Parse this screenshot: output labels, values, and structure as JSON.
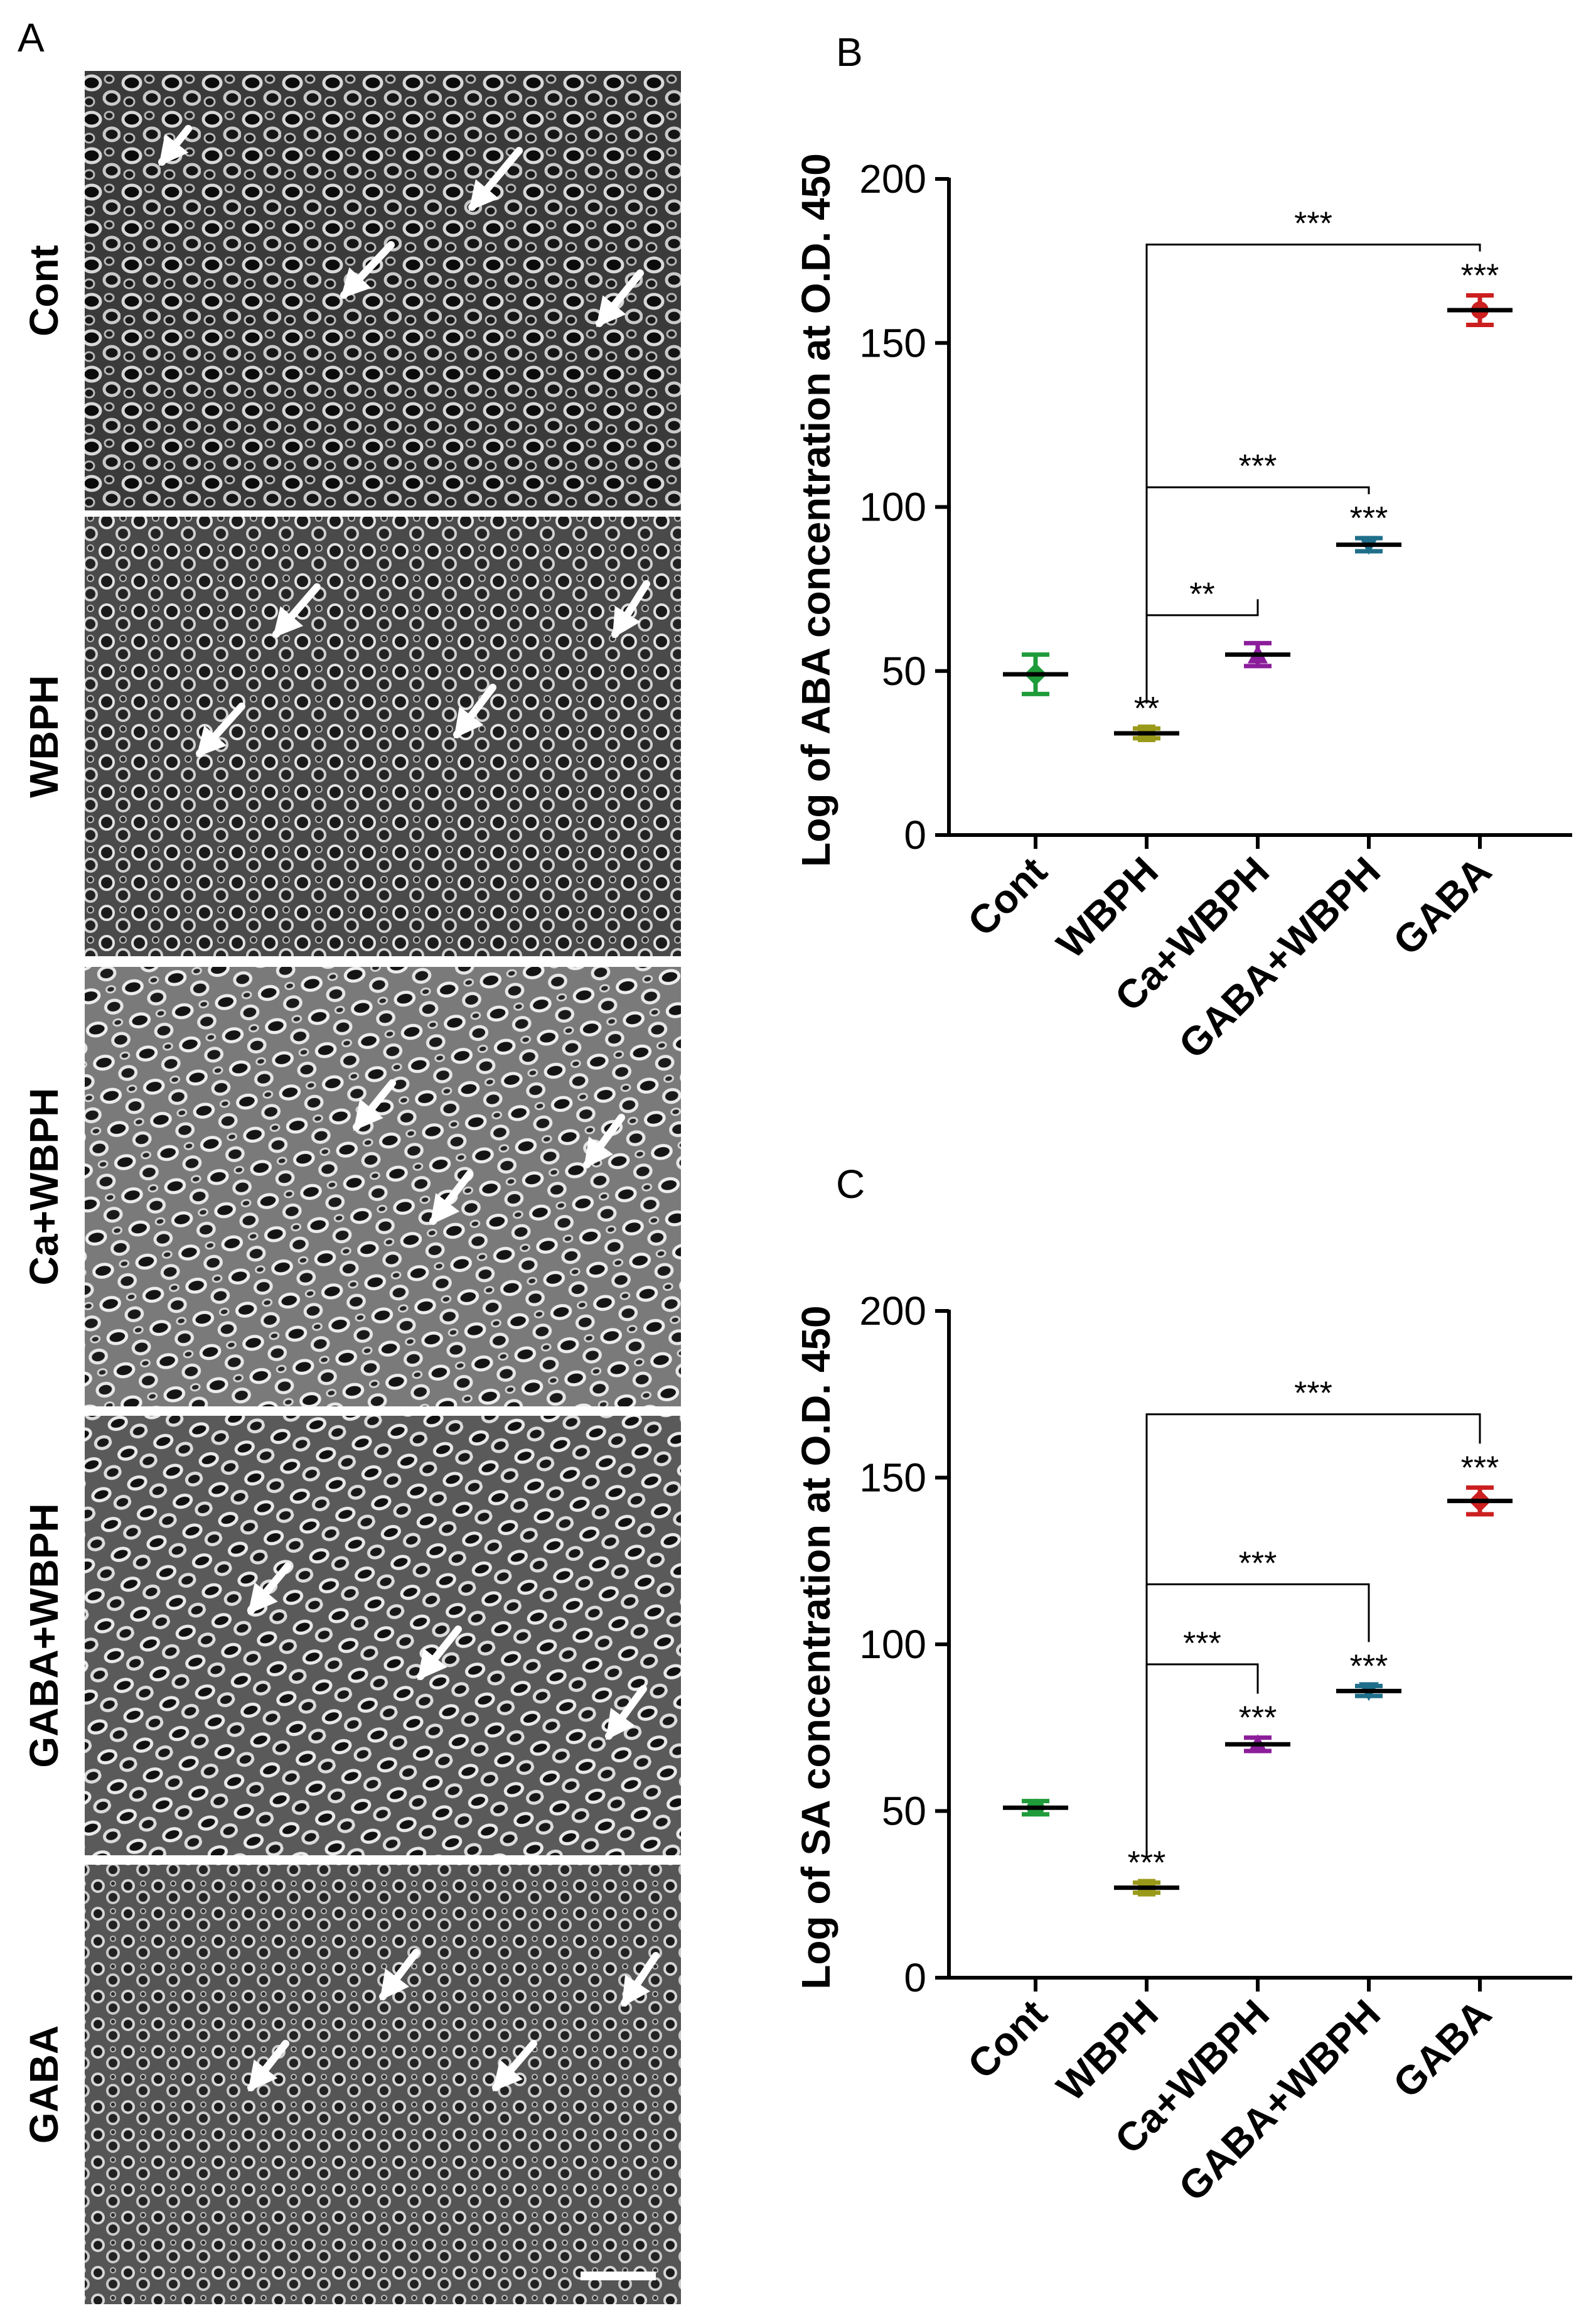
{
  "panel_a": {
    "letter": "A",
    "rows": [
      {
        "label": "Cont",
        "arrows": [
          [
            300,
            205,
            258,
            258
          ],
          [
            827,
            240,
            752,
            330
          ],
          [
            623,
            390,
            548,
            470
          ],
          [
            1020,
            435,
            955,
            515
          ]
        ]
      },
      {
        "label": "WBPH",
        "arrows": [
          [
            505,
            935,
            440,
            1010
          ],
          [
            1030,
            930,
            980,
            1010
          ],
          [
            385,
            1125,
            318,
            1200
          ],
          [
            785,
            1095,
            728,
            1170
          ]
        ]
      },
      {
        "label": "Ca+WBPH",
        "arrows": [
          [
            625,
            1725,
            568,
            1795
          ],
          [
            990,
            1780,
            935,
            1855
          ],
          [
            748,
            1870,
            690,
            1945
          ]
        ]
      },
      {
        "label": "GABA+WBPH",
        "arrows": [
          [
            458,
            2495,
            400,
            2565
          ],
          [
            730,
            2595,
            670,
            2670
          ],
          [
            1025,
            2690,
            970,
            2765
          ]
        ]
      },
      {
        "label": "GABA",
        "arrows": [
          [
            663,
            3110,
            610,
            3180
          ],
          [
            1045,
            3115,
            995,
            3190
          ],
          [
            455,
            3255,
            400,
            3325
          ],
          [
            850,
            3255,
            790,
            3325
          ]
        ]
      }
    ]
  },
  "chart_data": [
    {
      "panel": "B",
      "type": "scatter",
      "ylabel": "Log of ABA concentration at O.D. 450",
      "ylim": [
        0,
        200
      ],
      "yticks": [
        0,
        50,
        100,
        150,
        200
      ],
      "categories": [
        "Cont",
        "WBPH",
        "Ca+WBPH",
        "GABA+WBPH",
        "GABA"
      ],
      "values": [
        49,
        31,
        55,
        88.5,
        160
      ],
      "errors": [
        6,
        1.5,
        3.5,
        2,
        4.5
      ],
      "colors": [
        "#1f9b3a",
        "#9a9a1a",
        "#8b1d9a",
        "#1f6f8b",
        "#cc1f1f"
      ],
      "markers": [
        "diamond",
        "square",
        "triangle-up",
        "triangle-down",
        "circle"
      ],
      "point_labels": [
        "",
        "**",
        "",
        "***",
        "***"
      ],
      "brackets": [
        {
          "from": "WBPH",
          "to": "GABA",
          "label": "***",
          "y": 180
        },
        {
          "from": "WBPH",
          "to": "GABA+WBPH",
          "label": "***",
          "y": 106
        },
        {
          "from": "WBPH",
          "to": "Ca+WBPH",
          "label": "**",
          "y": 67
        }
      ]
    },
    {
      "panel": "C",
      "type": "scatter",
      "ylabel": "Log of SA concentration at O.D. 450",
      "ylim": [
        0,
        200
      ],
      "yticks": [
        0,
        50,
        100,
        150,
        200
      ],
      "categories": [
        "Cont",
        "WBPH",
        "Ca+WBPH",
        "GABA+WBPH",
        "GABA"
      ],
      "values": [
        51,
        27,
        70,
        86,
        143
      ],
      "errors": [
        2,
        1.5,
        2,
        1.5,
        4
      ],
      "colors": [
        "#1f9b3a",
        "#9a9a1a",
        "#8b1d9a",
        "#1f6f8b",
        "#cc1f1f"
      ],
      "markers": [
        "circle",
        "square",
        "triangle-up",
        "triangle-down",
        "diamond"
      ],
      "point_labels": [
        "",
        "***",
        "***",
        "***",
        "***"
      ],
      "brackets": [
        {
          "from": "WBPH",
          "to": "GABA",
          "label": "***",
          "y": 169
        },
        {
          "from": "WBPH",
          "to": "GABA+WBPH",
          "label": "***",
          "y": 118
        },
        {
          "from": "WBPH",
          "to": "Ca+WBPH",
          "label": "***",
          "y": 94
        }
      ]
    }
  ]
}
